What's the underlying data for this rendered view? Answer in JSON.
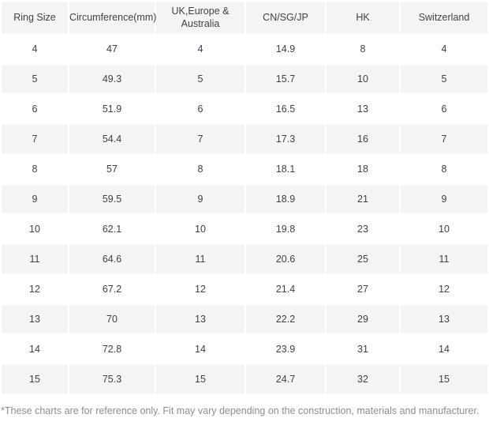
{
  "chart_data": {
    "type": "table",
    "columns": [
      "Ring Size",
      "Circumference(mm)",
      "UK,Europe & Australia",
      "CN/SG/JP",
      "HK",
      "Switzerland"
    ],
    "rows": [
      [
        "4",
        "47",
        "4",
        "14.9",
        "8",
        "4"
      ],
      [
        "5",
        "49.3",
        "5",
        "15.7",
        "10",
        "5"
      ],
      [
        "6",
        "51.9",
        "6",
        "16.5",
        "13",
        "6"
      ],
      [
        "7",
        "54.4",
        "7",
        "17.3",
        "16",
        "7"
      ],
      [
        "8",
        "57",
        "8",
        "18.1",
        "18",
        "8"
      ],
      [
        "9",
        "59.5",
        "9",
        "18.9",
        "21",
        "9"
      ],
      [
        "10",
        "62.1",
        "10",
        "19.8",
        "23",
        "10"
      ],
      [
        "11",
        "64.6",
        "11",
        "20.6",
        "25",
        "11"
      ],
      [
        "12",
        "67.2",
        "12",
        "21.4",
        "27",
        "12"
      ],
      [
        "13",
        "70",
        "13",
        "22.2",
        "29",
        "13"
      ],
      [
        "14",
        "72.8",
        "14",
        "23.9",
        "31",
        "14"
      ],
      [
        "15",
        "75.3",
        "15",
        "24.7",
        "32",
        "15"
      ]
    ]
  },
  "footnote": "*These charts are for reference only. Fit may vary depending on the construction, materials and manufacturer.",
  "colors": {
    "header_bg": "#f4f4f4",
    "stripe_bg": "#f4f4f4",
    "row_bg": "#ffffff",
    "text": "#3f3f46",
    "footnote_text": "#8e8e8e"
  }
}
